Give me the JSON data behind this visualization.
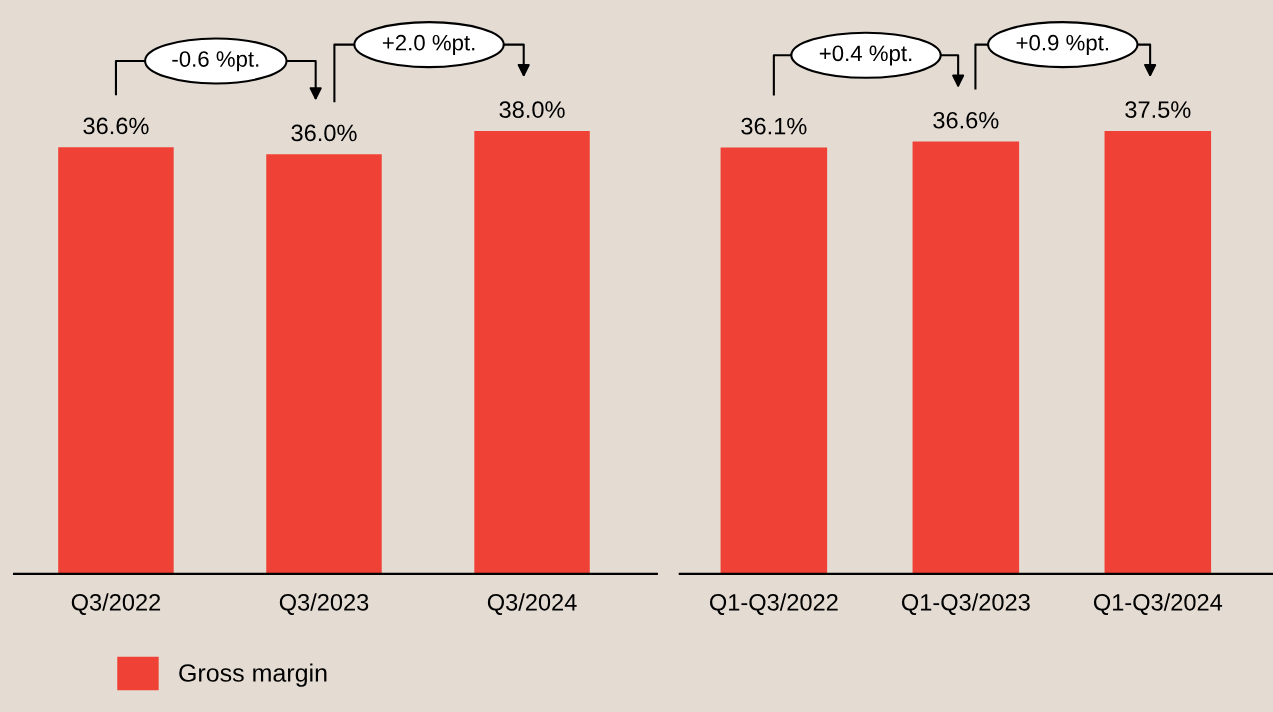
{
  "chart_data": [
    {
      "type": "bar",
      "categories": [
        "Q3/2022",
        "Q3/2023",
        "Q3/2024"
      ],
      "series": [
        {
          "name": "Gross margin",
          "color": "#ef4135",
          "values": [
            36.6,
            36.0,
            38.0
          ],
          "value_labels": [
            "36.6%",
            "36.0%",
            "38.0%"
          ]
        }
      ],
      "tick_labels": "x",
      "annotations": [
        "-0.6 %pt.",
        "+2.0 %pt."
      ],
      "legend": "bottom left",
      "grid": false
    },
    {
      "type": "bar",
      "categories": [
        "Q1-Q3/2022",
        "Q1-Q3/2023",
        "Q1-Q3/2024"
      ],
      "series": [
        {
          "color": "#ef4135",
          "values": [
            36.1,
            36.6,
            37.5
          ],
          "value_labels": [
            "36.1%",
            "36.6%",
            "37.5%"
          ]
        }
      ],
      "tick_labels": "x",
      "annotations": [
        "+0.4 %pt.",
        "+0.9 %pt."
      ],
      "grid": false
    }
  ]
}
